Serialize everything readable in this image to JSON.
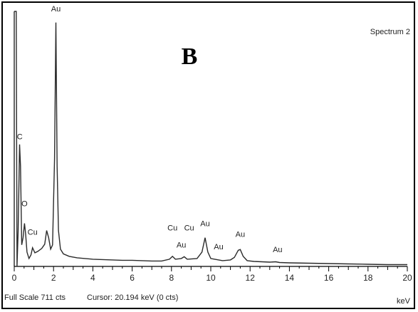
{
  "panel_letter": "B",
  "spectrum_name": "Spectrum 2",
  "status": {
    "full_scale": "Full Scale 711 cts",
    "cursor": "Cursor: 20.194 keV (0 cts)"
  },
  "colors": {
    "trace": "#2b2b2b",
    "axis": "#000000",
    "background": "#ffffff"
  },
  "chart_data": {
    "type": "line",
    "title": "",
    "xlabel": "keV",
    "ylabel": "",
    "xlim": [
      0,
      20
    ],
    "ylim": [
      0,
      711
    ],
    "grid": false,
    "legend": "none",
    "x_ticks": [
      0,
      2,
      4,
      6,
      8,
      10,
      12,
      14,
      16,
      18,
      20
    ],
    "series": [
      {
        "points": [
          [
            0.0,
            711
          ],
          [
            0.05,
            711
          ],
          [
            0.1,
            711
          ],
          [
            0.14,
            0
          ],
          [
            0.2,
            100
          ],
          [
            0.27,
            340
          ],
          [
            0.32,
            280
          ],
          [
            0.38,
            60
          ],
          [
            0.45,
            80
          ],
          [
            0.52,
            120
          ],
          [
            0.58,
            90
          ],
          [
            0.65,
            40
          ],
          [
            0.75,
            22
          ],
          [
            0.85,
            32
          ],
          [
            0.93,
            52
          ],
          [
            1.05,
            38
          ],
          [
            1.2,
            42
          ],
          [
            1.4,
            50
          ],
          [
            1.55,
            62
          ],
          [
            1.65,
            100
          ],
          [
            1.75,
            80
          ],
          [
            1.85,
            48
          ],
          [
            1.95,
            60
          ],
          [
            2.05,
            300
          ],
          [
            2.12,
            680
          ],
          [
            2.18,
            280
          ],
          [
            2.25,
            100
          ],
          [
            2.35,
            48
          ],
          [
            2.5,
            35
          ],
          [
            2.8,
            28
          ],
          [
            3.2,
            24
          ],
          [
            3.6,
            22
          ],
          [
            4.0,
            20
          ],
          [
            4.5,
            19
          ],
          [
            5.0,
            18
          ],
          [
            5.5,
            17
          ],
          [
            6.0,
            17
          ],
          [
            6.5,
            16
          ],
          [
            7.0,
            15
          ],
          [
            7.5,
            15
          ],
          [
            7.9,
            20
          ],
          [
            8.05,
            28
          ],
          [
            8.2,
            20
          ],
          [
            8.5,
            22
          ],
          [
            8.65,
            27
          ],
          [
            8.8,
            20
          ],
          [
            9.3,
            22
          ],
          [
            9.55,
            40
          ],
          [
            9.71,
            80
          ],
          [
            9.85,
            40
          ],
          [
            10.0,
            22
          ],
          [
            10.2,
            20
          ],
          [
            10.6,
            16
          ],
          [
            11.0,
            18
          ],
          [
            11.2,
            25
          ],
          [
            11.4,
            45
          ],
          [
            11.5,
            47
          ],
          [
            11.65,
            28
          ],
          [
            11.85,
            16
          ],
          [
            12.2,
            14
          ],
          [
            12.6,
            13
          ],
          [
            13.0,
            12
          ],
          [
            13.3,
            13
          ],
          [
            13.5,
            11
          ],
          [
            14.0,
            10
          ],
          [
            15.0,
            9
          ],
          [
            16.0,
            8
          ],
          [
            17.0,
            7
          ],
          [
            18.0,
            6
          ],
          [
            19.0,
            5
          ],
          [
            20.0,
            5
          ]
        ]
      }
    ],
    "peak_labels": [
      {
        "text": "Au",
        "x": 2.12,
        "y": 711
      },
      {
        "text": "C",
        "x": 0.28,
        "y": 355
      },
      {
        "text": "O",
        "x": 0.52,
        "y": 168
      },
      {
        "text": "Cu",
        "x": 0.93,
        "y": 88
      },
      {
        "text": "Cu",
        "x": 8.05,
        "y": 100
      },
      {
        "text": "Cu",
        "x": 8.9,
        "y": 100
      },
      {
        "text": "Au",
        "x": 9.71,
        "y": 112
      },
      {
        "text": "Au",
        "x": 8.5,
        "y": 53
      },
      {
        "text": "Au",
        "x": 10.4,
        "y": 48
      },
      {
        "text": "Au",
        "x": 11.5,
        "y": 82
      },
      {
        "text": "Au",
        "x": 13.4,
        "y": 40
      }
    ]
  }
}
